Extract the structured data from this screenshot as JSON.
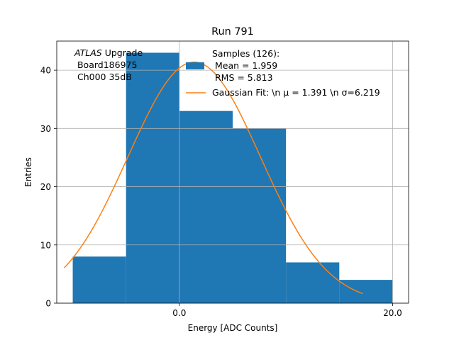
{
  "chart_data": {
    "type": "bar",
    "title": "Run 791",
    "xlabel": "Energy [ADC Counts]",
    "ylabel": "Entries",
    "xlim": [
      -11.5,
      21.5
    ],
    "ylim": [
      0,
      45
    ],
    "grid": true,
    "bin_edges": [
      -10,
      -5,
      0,
      5,
      10,
      15,
      20
    ],
    "values": [
      8,
      43,
      33,
      30,
      7,
      4
    ],
    "x_ticks": [
      0.0,
      20.0
    ],
    "x_tick_labels": [
      "0.0",
      "20.0"
    ],
    "y_ticks": [
      0,
      10,
      20,
      30,
      40
    ],
    "y_tick_labels": [
      "0",
      "10",
      "20",
      "30",
      "40"
    ],
    "annotation": {
      "line1_italic": "ATLAS",
      "line1_rest": " Upgrade",
      "line2": " Board186975",
      "line3": " Ch000 35dB"
    },
    "legend": {
      "placement": "top-right",
      "hist_label_lines": [
        "Samples (126):",
        " Mean = 1.959",
        " RMS = 5.813"
      ],
      "fit_label": "Gaussian Fit: \\n μ = 1.391 \\n σ=6.219"
    },
    "fit": {
      "type": "gaussian",
      "mu": 1.391,
      "sigma": 6.219,
      "amplitude": 41.4,
      "x_range": [
        -10.8,
        17.2
      ]
    },
    "colors": {
      "bars": "#1f77b4",
      "fit": "#ff7f0e",
      "grid": "#b0b0b0"
    }
  }
}
